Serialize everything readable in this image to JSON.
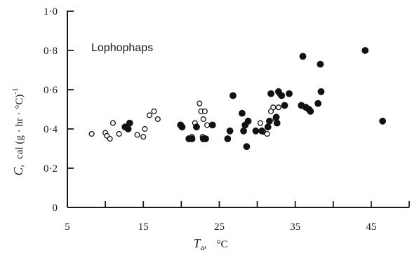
{
  "chart_data": {
    "type": "scatter",
    "annotation": "Lophophaps",
    "xlabel": {
      "symbol": "T",
      "sub": "a",
      "sep": ",",
      "unit": "°C"
    },
    "ylabel": {
      "symbol": "C",
      "sep": ",",
      "unit": "cal (g · hr · °C)",
      "exp": "-1"
    },
    "xlim": [
      5,
      50
    ],
    "ylim": [
      0,
      1.0
    ],
    "x_ticks": [
      5,
      15,
      25,
      35,
      45
    ],
    "x_tick_labels": [
      "5",
      "15",
      "25",
      "35",
      "45"
    ],
    "x_minor_ticks": [
      10,
      20,
      30,
      40,
      50
    ],
    "y_ticks": [
      0,
      0.2,
      0.4,
      0.6,
      0.8,
      1.0
    ],
    "y_tick_labels": [
      "0",
      "0·2",
      "0·4",
      "0·6",
      "0·8",
      "1·0"
    ],
    "grid": false,
    "legend": "none",
    "series": [
      {
        "marker": "open-circle",
        "points": [
          [
            8.2,
            0.375
          ],
          [
            10.0,
            0.38
          ],
          [
            10.2,
            0.365
          ],
          [
            10.6,
            0.35
          ],
          [
            11.0,
            0.43
          ],
          [
            11.8,
            0.375
          ],
          [
            14.2,
            0.37
          ],
          [
            15.0,
            0.36
          ],
          [
            15.2,
            0.4
          ],
          [
            15.8,
            0.47
          ],
          [
            16.4,
            0.49
          ],
          [
            16.9,
            0.45
          ],
          [
            21.4,
            0.36
          ],
          [
            21.8,
            0.43
          ],
          [
            22.4,
            0.53
          ],
          [
            22.6,
            0.49
          ],
          [
            22.8,
            0.36
          ],
          [
            22.9,
            0.45
          ],
          [
            23.1,
            0.49
          ],
          [
            23.4,
            0.42
          ],
          [
            30.4,
            0.43
          ],
          [
            30.8,
            0.385
          ],
          [
            31.3,
            0.375
          ],
          [
            31.8,
            0.49
          ],
          [
            32.1,
            0.51
          ],
          [
            32.4,
            0.45
          ],
          [
            32.8,
            0.51
          ],
          [
            33.0,
            0.575
          ]
        ]
      },
      {
        "marker": "filled-circle",
        "points": [
          [
            12.6,
            0.41
          ],
          [
            13.0,
            0.4
          ],
          [
            13.2,
            0.43
          ],
          [
            19.9,
            0.42
          ],
          [
            20.1,
            0.41
          ],
          [
            21.0,
            0.35
          ],
          [
            21.4,
            0.35
          ],
          [
            22.0,
            0.41
          ],
          [
            22.9,
            0.35
          ],
          [
            23.2,
            0.35
          ],
          [
            24.1,
            0.42
          ],
          [
            26.1,
            0.35
          ],
          [
            26.4,
            0.39
          ],
          [
            26.8,
            0.57
          ],
          [
            28.0,
            0.48
          ],
          [
            28.2,
            0.39
          ],
          [
            28.4,
            0.42
          ],
          [
            28.8,
            0.44
          ],
          [
            28.6,
            0.31
          ],
          [
            29.8,
            0.39
          ],
          [
            30.6,
            0.39
          ],
          [
            31.4,
            0.41
          ],
          [
            31.6,
            0.44
          ],
          [
            31.8,
            0.58
          ],
          [
            32.5,
            0.46
          ],
          [
            32.6,
            0.43
          ],
          [
            32.8,
            0.59
          ],
          [
            33.2,
            0.57
          ],
          [
            33.6,
            0.52
          ],
          [
            34.2,
            0.58
          ],
          [
            35.8,
            0.52
          ],
          [
            36.4,
            0.51
          ],
          [
            36.0,
            0.77
          ],
          [
            36.8,
            0.5
          ],
          [
            37.0,
            0.49
          ],
          [
            38.3,
            0.73
          ],
          [
            38.0,
            0.53
          ],
          [
            38.4,
            0.59
          ],
          [
            44.2,
            0.8
          ],
          [
            46.5,
            0.44
          ]
        ]
      }
    ]
  }
}
